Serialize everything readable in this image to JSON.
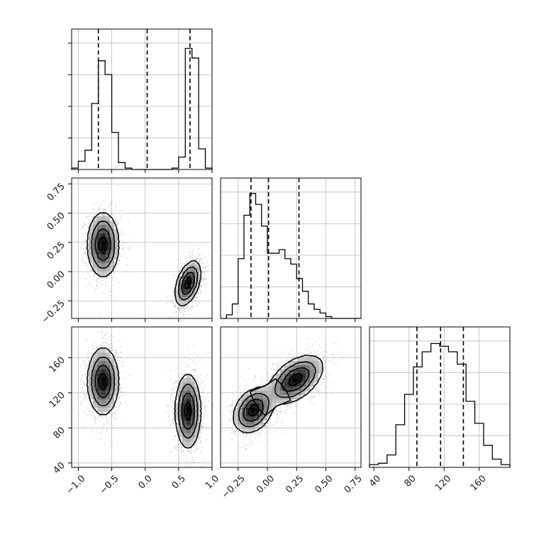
{
  "chart_data": {
    "type": "corner",
    "grid": true,
    "params": [
      {
        "range": [
          -1.1,
          1.0
        ],
        "ticks": [
          -1.0,
          -0.5,
          0.0,
          0.5,
          1.0
        ],
        "tick_labels": [
          "−1.0",
          "−0.5",
          "0.0",
          "0.5",
          "1.0"
        ],
        "hist": {
          "edges": [
            -1.1,
            -1.0,
            -0.9,
            -0.8,
            -0.7,
            -0.6,
            -0.5,
            -0.4,
            -0.3,
            -0.2,
            -0.1,
            0.0,
            0.1,
            0.2,
            0.3,
            0.4,
            0.5,
            0.6,
            0.7,
            0.8,
            0.9,
            1.0
          ],
          "counts": [
            0.01,
            0.06,
            0.14,
            0.48,
            0.79,
            0.69,
            0.27,
            0.05,
            0.01,
            0.0,
            0.0,
            0.0,
            0.0,
            0.0,
            0.0,
            0.01,
            0.09,
            0.88,
            0.81,
            0.15,
            0.01
          ],
          "ymax": 1.0
        },
        "quantiles": [
          -0.7,
          0.03,
          0.67
        ]
      },
      {
        "range": [
          -0.4,
          0.8
        ],
        "ticks": [
          -0.25,
          0.0,
          0.25,
          0.5,
          0.75
        ],
        "tick_labels": [
          "−0.25",
          "0.00",
          "0.25",
          "0.50",
          "0.75"
        ],
        "hist": {
          "edges": [
            -0.4,
            -0.35,
            -0.3,
            -0.25,
            -0.2,
            -0.15,
            -0.1,
            -0.05,
            0.0,
            0.05,
            0.1,
            0.15,
            0.2,
            0.25,
            0.3,
            0.35,
            0.4,
            0.45,
            0.5,
            0.55,
            0.6,
            0.65,
            0.7,
            0.75,
            0.8
          ],
          "counts": [
            0.0,
            0.02,
            0.08,
            0.33,
            0.57,
            0.69,
            0.63,
            0.51,
            0.36,
            0.36,
            0.38,
            0.33,
            0.3,
            0.22,
            0.15,
            0.08,
            0.05,
            0.03,
            0.01,
            0.0,
            0.0,
            0.0,
            0.0,
            0.0
          ],
          "ymax": 0.76
        },
        "quantiles": [
          -0.14,
          0.01,
          0.27
        ]
      },
      {
        "range": [
          35,
          195
        ],
        "ticks": [
          40,
          80,
          120,
          160
        ],
        "tick_labels": [
          "40",
          "80",
          "120",
          "160"
        ],
        "hist": {
          "edges": [
            35,
            45,
            55,
            65,
            75,
            85,
            95,
            105,
            115,
            125,
            135,
            145,
            155,
            165,
            175,
            185,
            195
          ],
          "counts": [
            0.02,
            0.03,
            0.09,
            0.31,
            0.53,
            0.73,
            0.84,
            0.9,
            0.88,
            0.84,
            0.75,
            0.48,
            0.32,
            0.16,
            0.06,
            0.02
          ],
          "ymax": 1.0
        },
        "quantiles": [
          89,
          116,
          142
        ]
      }
    ],
    "pairs": [
      {
        "row": 1,
        "col": 0,
        "modes": [
          {
            "cx": -0.63,
            "cy": 0.23,
            "sx": 0.11,
            "sy": 0.13,
            "rho": 0.0,
            "w": 0.5
          },
          {
            "cx": 0.64,
            "cy": -0.1,
            "sx": 0.09,
            "sy": 0.09,
            "rho": 0.45,
            "w": 0.5
          }
        ]
      },
      {
        "row": 2,
        "col": 0,
        "modes": [
          {
            "cx": -0.63,
            "cy": 133,
            "sx": 0.11,
            "sy": 18,
            "rho": 0.0,
            "w": 0.5
          },
          {
            "cx": 0.64,
            "cy": 99,
            "sx": 0.09,
            "sy": 20,
            "rho": 0.0,
            "w": 0.5
          }
        ]
      },
      {
        "row": 2,
        "col": 1,
        "modes": [
          {
            "cx": -0.12,
            "cy": 100,
            "sx": 0.08,
            "sy": 12,
            "rho": 0.3,
            "w": 0.5
          },
          {
            "cx": 0.24,
            "cy": 135,
            "sx": 0.11,
            "sy": 13,
            "rho": 0.5,
            "w": 0.5
          }
        ]
      }
    ]
  }
}
